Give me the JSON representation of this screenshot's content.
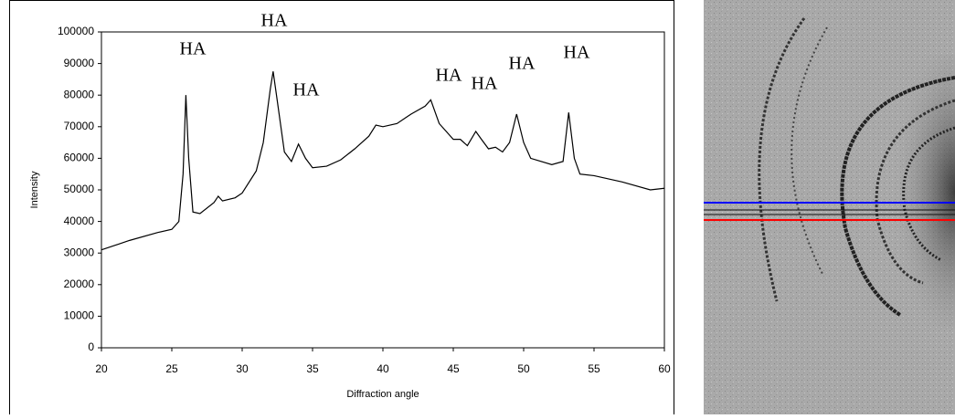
{
  "chart_data": {
    "type": "line",
    "x_label": "Diffraction angle",
    "y_label": "Intensity",
    "annotations": [
      "HA",
      "HA",
      "HA",
      "HA",
      "HA",
      "HA",
      "HA"
    ],
    "x": [
      20,
      22,
      24,
      25,
      25.5,
      25.8,
      26.0,
      26.2,
      26.5,
      27,
      28,
      28.3,
      28.6,
      29.5,
      30,
      31,
      31.5,
      32,
      32.2,
      32.5,
      33,
      33.5,
      34,
      34.5,
      35,
      36,
      37,
      38,
      39,
      39.5,
      40,
      41,
      42,
      43,
      43.4,
      44,
      45,
      45.5,
      46,
      46.6,
      47,
      47.5,
      48,
      48.5,
      49,
      49.5,
      50,
      50.5,
      52,
      52.8,
      53.2,
      53.6,
      54,
      55,
      57,
      59,
      60
    ],
    "values": [
      31000,
      34000,
      36500,
      37500,
      40000,
      55000,
      80000,
      60000,
      43000,
      42500,
      46000,
      48000,
      46500,
      47500,
      49000,
      56000,
      65000,
      82000,
      87500,
      78000,
      62000,
      59000,
      64500,
      60000,
      57000,
      57500,
      59500,
      63000,
      67000,
      70500,
      70000,
      71000,
      74000,
      76500,
      78500,
      71000,
      66000,
      66000,
      64000,
      68500,
      66000,
      63000,
      63500,
      62000,
      65000,
      74000,
      65000,
      60000,
      58000,
      59000,
      74500,
      60000,
      55000,
      54500,
      52500,
      50000,
      50500
    ],
    "color": "#000000",
    "xlim": [
      20,
      60
    ],
    "ylim": [
      0,
      100000
    ],
    "xticks": [
      20,
      25,
      30,
      35,
      40,
      45,
      50,
      55,
      60
    ],
    "yticks": [
      0,
      10000,
      20000,
      30000,
      40000,
      50000,
      60000,
      70000,
      80000,
      90000,
      100000
    ],
    "grid": false
  }
}
